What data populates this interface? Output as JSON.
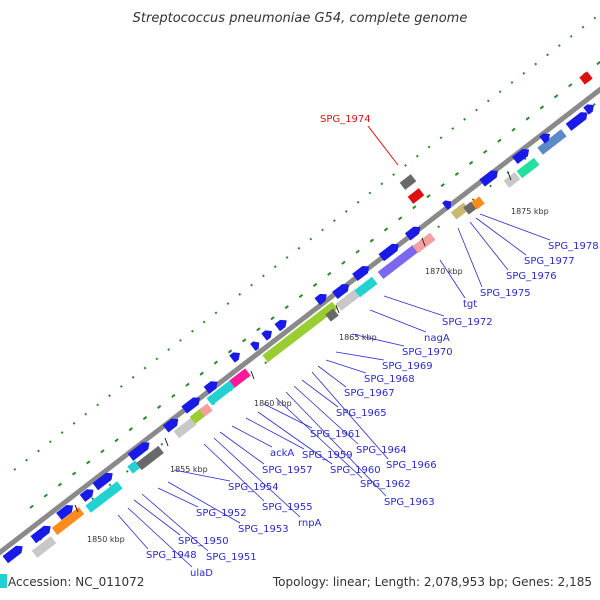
{
  "title": "Streptococcus pneumoniae G54, complete genome",
  "accession": "Accession: NC_011072",
  "summary": "Topology: linear; Length: 2,078,953 bp; Genes: 2,185",
  "selected_gene": {
    "name": "SPG_1974",
    "color": "#e01010"
  },
  "ticks": [
    "1850 kbp",
    "1855 kbp",
    "1860 kbp",
    "1865 kbp",
    "1870 kbp",
    "1875 kbp"
  ],
  "gene_labels": [
    "SPG_1948",
    "ulaD",
    "SPG_1950",
    "SPG_1951",
    "SPG_1952",
    "SPG_1953",
    "SPG_1954",
    "SPG_1955",
    "rnpA",
    "SPG_1957",
    "ackA",
    "SPG_1959",
    "SPG_1960",
    "SPG_1961",
    "SPG_1962",
    "SPG_1963",
    "SPG_1964",
    "SPG_1965",
    "SPG_1966",
    "SPG_1967",
    "SPG_1968",
    "SPG_1969",
    "SPG_1970",
    "nagA",
    "SPG_1972",
    "tgt",
    "SPG_1975",
    "SPG_1976",
    "SPG_1977",
    "SPG_1978"
  ],
  "colors": {
    "axis": "#8a8a8a",
    "gene_forward": "#1a1ae6",
    "label": "#2a2ad0",
    "gc_dots": "#2a8a2a"
  }
}
